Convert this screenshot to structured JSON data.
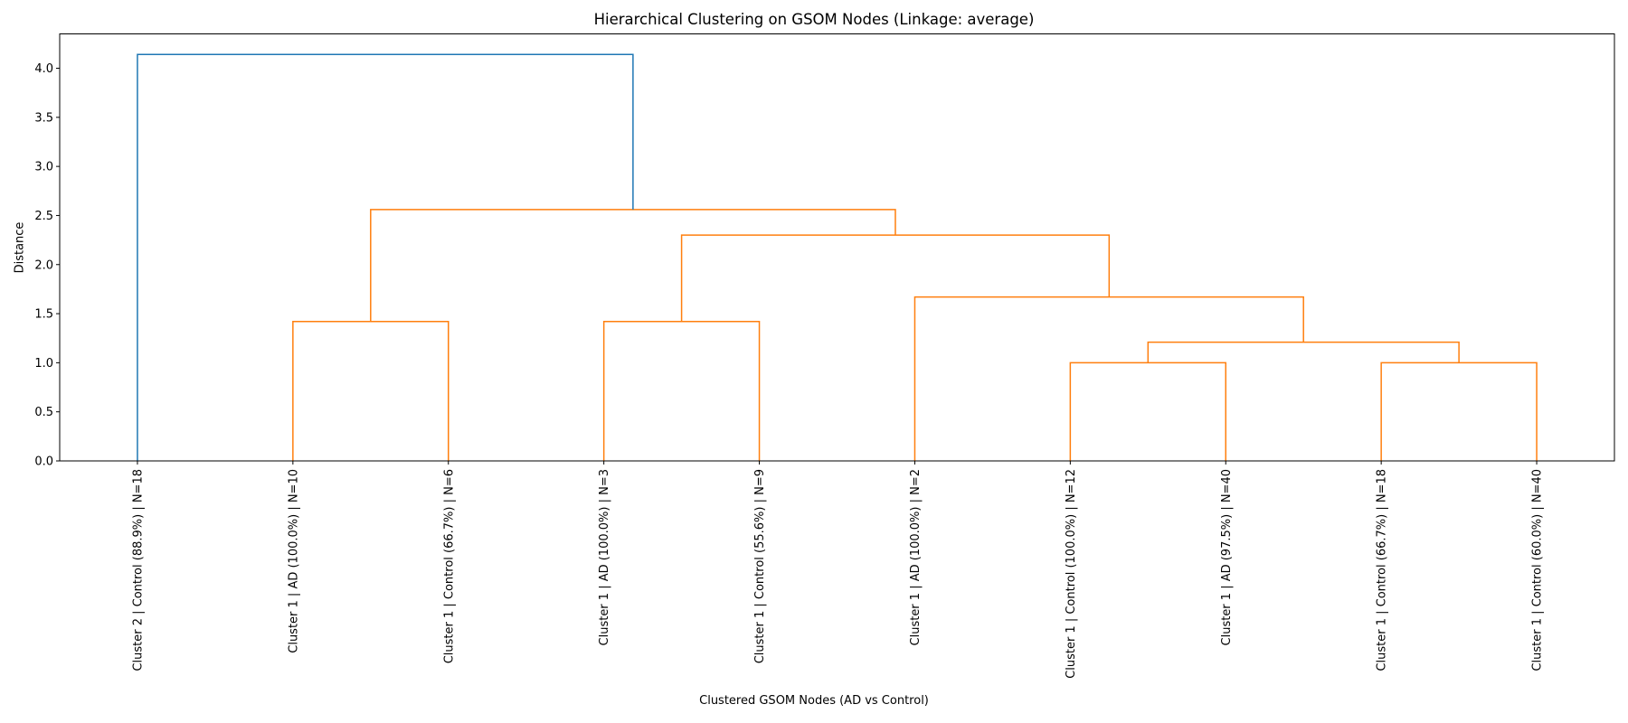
{
  "chart_data": {
    "type": "dendrogram",
    "title": "Hierarchical Clustering on GSOM Nodes (Linkage: average)",
    "xlabel": "Clustered GSOM Nodes (AD vs Control)",
    "ylabel": "Distance",
    "ylim": [
      0,
      4.35
    ],
    "yticks": [
      0.0,
      0.5,
      1.0,
      1.5,
      2.0,
      2.5,
      3.0,
      3.5,
      4.0
    ],
    "ytick_labels": [
      "0.0",
      "0.5",
      "1.0",
      "1.5",
      "2.0",
      "2.5",
      "3.0",
      "3.5",
      "4.0"
    ],
    "grid": false,
    "colors": {
      "above_threshold": "#1f77b4",
      "cluster": "#ff7f0e",
      "axes": "#000000"
    },
    "leaves": [
      "Cluster 2 | Control (88.9%) | N=18",
      "Cluster 1 | AD (100.0%) | N=10",
      "Cluster 1 | Control (66.7%) | N=6",
      "Cluster 1 | AD (100.0%) | N=3",
      "Cluster 1 | Control (55.6%) | N=9",
      "Cluster 1 | AD (100.0%) | N=2",
      "Cluster 1 | Control (100.0%) | N=12",
      "Cluster 1 | AD (97.5%) | N=40",
      "Cluster 1 | Control (66.7%) | N=18",
      "Cluster 1 | Control (60.0%) | N=40"
    ],
    "merges": [
      {
        "id": "L1",
        "left": 1,
        "right": 2,
        "distance": 1.42,
        "color": "cluster"
      },
      {
        "id": "L2",
        "left": 3,
        "right": 4,
        "distance": 1.42,
        "color": "cluster"
      },
      {
        "id": "L3",
        "left": 6,
        "right": 7,
        "distance": 1.0,
        "color": "cluster"
      },
      {
        "id": "L4",
        "left": 8,
        "right": 9,
        "distance": 1.0,
        "color": "cluster"
      },
      {
        "id": "L5",
        "left": "L3",
        "right": "L4",
        "distance": 1.21,
        "color": "cluster"
      },
      {
        "id": "L6",
        "left": 5,
        "right": "L5",
        "distance": 1.67,
        "color": "cluster"
      },
      {
        "id": "L7",
        "left": "L2",
        "right": "L6",
        "distance": 2.3,
        "color": "cluster"
      },
      {
        "id": "L8",
        "left": "L1",
        "right": "L7",
        "distance": 2.56,
        "color": "cluster"
      },
      {
        "id": "L9",
        "left": 0,
        "right": "L8",
        "distance": 4.14,
        "color": "above_threshold"
      }
    ]
  }
}
